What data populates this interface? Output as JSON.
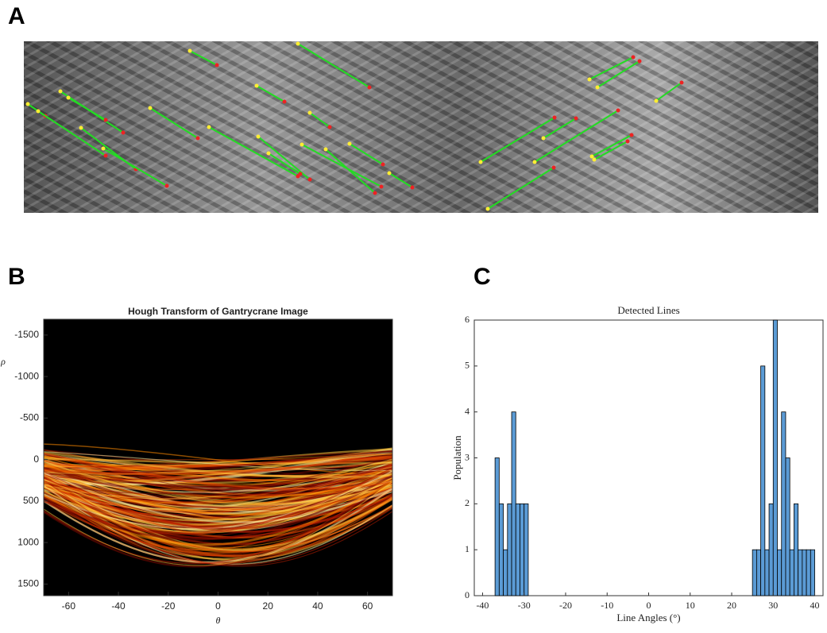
{
  "chart_data": [
    {
      "type": "image",
      "panel_label": "A"
    },
    {
      "type": "heatmap",
      "panel_label": "B",
      "title": "Hough Transform of Gantrycrane Image",
      "x_label": "θ",
      "y_label": "ρ",
      "xlim": [
        -70,
        70
      ],
      "ylim": [
        -1690,
        1640
      ],
      "y_reversed": true,
      "xticks": [
        -60,
        -40,
        -20,
        0,
        20,
        40,
        60
      ],
      "yticks": [
        -1500,
        -1000,
        -500,
        0,
        500,
        1000,
        1500
      ]
    },
    {
      "type": "histogram",
      "panel_label": "C",
      "title": "Detected Lines",
      "x_label": "Line Angles (°)",
      "y_label": "Population",
      "color": "#5b9bd5",
      "xlim": [
        -42,
        42
      ],
      "ylim": [
        0,
        6
      ],
      "xticks": [
        -40,
        -30,
        -20,
        -10,
        0,
        10,
        20,
        30,
        40
      ],
      "yticks": [
        0,
        1,
        2,
        3,
        4,
        5,
        6
      ],
      "bins": [
        -37,
        -36,
        -35,
        -34,
        -33,
        -32,
        -31,
        -30,
        -29,
        -28,
        -27,
        -26,
        -25,
        -24,
        -23,
        -22,
        -21,
        -20,
        -19,
        -18,
        -17,
        -16,
        -15,
        -14,
        -13,
        -12,
        -11,
        -10,
        -9,
        -8,
        -7,
        -6,
        -5,
        -4,
        -3,
        -2,
        -1,
        0,
        1,
        2,
        3,
        4,
        5,
        6,
        7,
        8,
        9,
        10,
        11,
        12,
        13,
        14,
        15,
        16,
        17,
        18,
        19,
        20,
        21,
        22,
        23,
        24,
        25,
        26,
        27,
        28,
        29,
        30,
        31,
        32,
        33,
        34,
        35,
        36,
        37,
        38,
        39,
        40
      ],
      "counts": [
        3,
        2,
        1,
        2,
        4,
        2,
        2,
        2,
        0,
        0,
        0,
        0,
        0,
        0,
        0,
        0,
        0,
        0,
        0,
        0,
        0,
        0,
        0,
        0,
        0,
        0,
        0,
        0,
        0,
        0,
        0,
        0,
        0,
        0,
        0,
        0,
        0,
        0,
        0,
        0,
        0,
        0,
        0,
        0,
        0,
        0,
        0,
        0,
        0,
        0,
        0,
        0,
        0,
        0,
        0,
        0,
        0,
        0,
        0,
        0,
        0,
        0,
        1,
        1,
        5,
        1,
        2,
        6,
        1,
        4,
        3,
        1,
        2,
        1,
        1,
        1,
        1
      ]
    }
  ]
}
